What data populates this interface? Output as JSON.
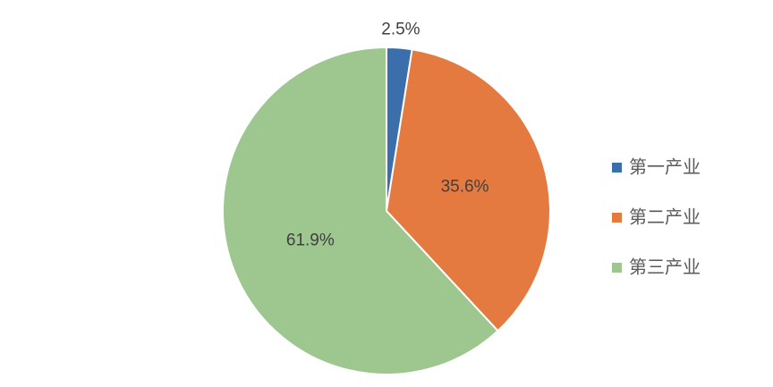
{
  "chart_data": {
    "type": "pie",
    "categories": [
      "第一产业",
      "第二产业",
      "第三产业"
    ],
    "values": [
      2.5,
      35.6,
      61.9
    ],
    "value_labels": [
      "2.5%",
      "35.6%",
      "61.9%"
    ],
    "colors": [
      "#3b6fab",
      "#e47a40",
      "#9dc78e"
    ],
    "legend": "right"
  }
}
